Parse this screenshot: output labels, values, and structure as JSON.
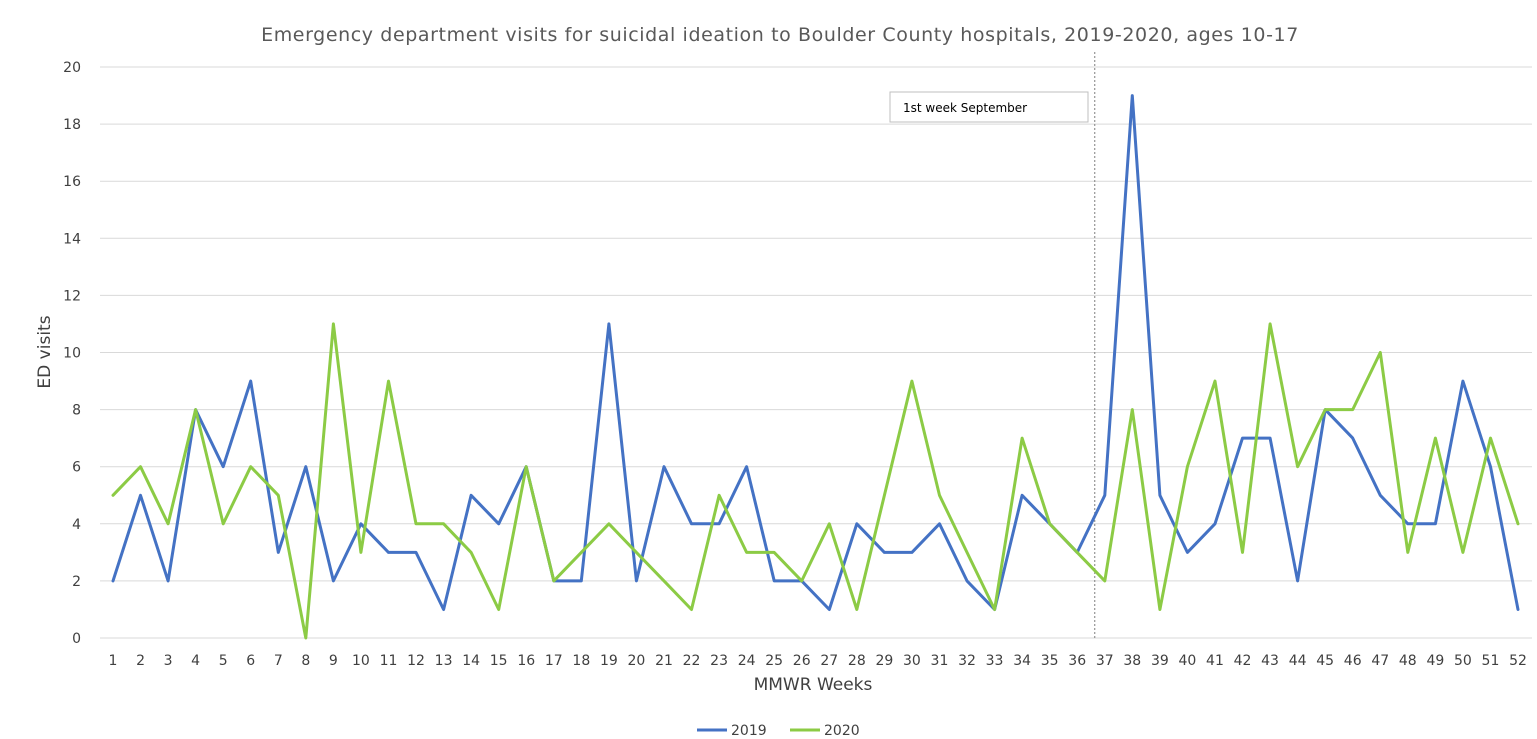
{
  "chart_data": {
    "type": "line",
    "title": "Emergency department visits for suicidal ideation to Boulder County hospitals, 2019-2020, ages 10-17",
    "xlabel": "MMWR Weeks",
    "ylabel": "ED visits",
    "ylim": [
      0,
      20
    ],
    "yticks": [
      0,
      2,
      4,
      6,
      8,
      10,
      12,
      14,
      16,
      18,
      20
    ],
    "grid": true,
    "legend_position": "bottom",
    "categories": [
      "1",
      "2",
      "3",
      "4",
      "5",
      "6",
      "7",
      "8",
      "9",
      "10",
      "11",
      "12",
      "13",
      "14",
      "15",
      "16",
      "17",
      "18",
      "19",
      "20",
      "21",
      "22",
      "23",
      "24",
      "25",
      "26",
      "27",
      "28",
      "29",
      "30",
      "31",
      "32",
      "33",
      "34",
      "35",
      "36",
      "37",
      "38",
      "39",
      "40",
      "41",
      "42",
      "43",
      "44",
      "45",
      "46",
      "47",
      "48",
      "49",
      "50",
      "51",
      "52"
    ],
    "series": [
      {
        "name": "2019",
        "color": "#4472C4",
        "values": [
          2,
          5,
          2,
          8,
          6,
          9,
          3,
          6,
          2,
          4,
          3,
          3,
          1,
          5,
          4,
          6,
          2,
          2,
          11,
          2,
          6,
          4,
          4,
          6,
          2,
          2,
          1,
          4,
          3,
          3,
          4,
          2,
          1,
          5,
          4,
          3,
          5,
          19,
          5,
          3,
          4,
          7,
          7,
          2,
          8,
          7,
          5,
          4,
          4,
          9,
          6,
          1
        ]
      },
      {
        "name": "2020",
        "color": "#8CCB45",
        "values": [
          5,
          6,
          4,
          8,
          4,
          6,
          5,
          0,
          11,
          3,
          9,
          4,
          4,
          3,
          1,
          6,
          2,
          3,
          4,
          3,
          2,
          1,
          5,
          3,
          3,
          2,
          4,
          1,
          5,
          9,
          5,
          3,
          1,
          7,
          4,
          3,
          2,
          8,
          1,
          6,
          9,
          3,
          11,
          6,
          8,
          8,
          10,
          3,
          7,
          3,
          7,
          4
        ]
      }
    ],
    "annotations": [
      {
        "label": "1st week September",
        "x": "37"
      }
    ]
  }
}
